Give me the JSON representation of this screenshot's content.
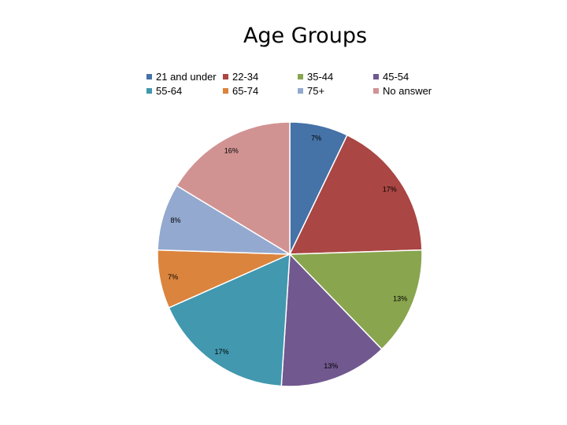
{
  "chart_data": {
    "type": "pie",
    "title": "Age Groups",
    "categories": [
      "21 and under",
      "22-34",
      "35-44",
      "45-54",
      "55-64",
      "65-74",
      "75+",
      "No answer"
    ],
    "values": [
      7,
      17,
      13,
      13,
      17,
      7,
      8,
      16
    ],
    "labels": [
      "7%",
      "17%",
      "13%",
      "13%",
      "17%",
      "7%",
      "8%",
      "16%"
    ],
    "colors": [
      "#4572A7",
      "#AA4643",
      "#89A54E",
      "#71588F",
      "#4198AF",
      "#DB843D",
      "#93A9CF",
      "#D19392"
    ],
    "legend_position": "top"
  }
}
